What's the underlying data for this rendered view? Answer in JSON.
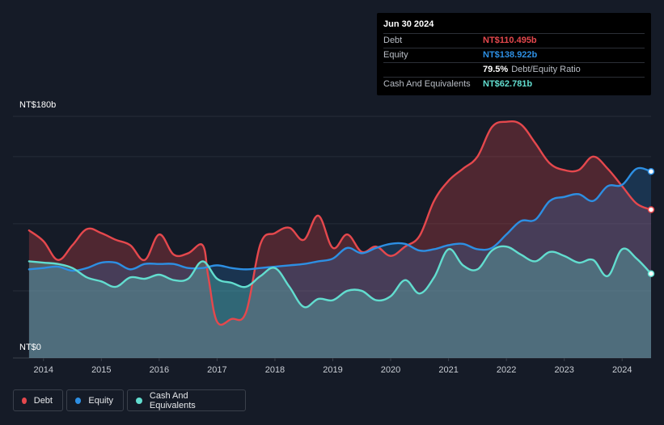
{
  "tooltip": {
    "date": "Jun 30 2024",
    "debt_label": "Debt",
    "debt_value": "NT$110.495b",
    "equity_label": "Equity",
    "equity_value": "NT$138.922b",
    "ratio_value": "79.5%",
    "ratio_label": "Debt/Equity Ratio",
    "cash_label": "Cash And Equivalents",
    "cash_value": "NT$62.781b"
  },
  "legend": {
    "debt": "Debt",
    "equity": "Equity",
    "cash": "Cash And Equivalents"
  },
  "colors": {
    "debt": "#e5484d",
    "equity": "#2d8fe3",
    "cash": "#62ddcf",
    "background": "#151b27"
  },
  "chart_data": {
    "type": "area",
    "y_top_label": "NT$180b",
    "y_bottom_label": "NT$0",
    "ylim": [
      0,
      180
    ],
    "xlim": [
      2013.5,
      2024.5
    ],
    "grid": true,
    "x_ticks": [
      "2014",
      "2015",
      "2016",
      "2017",
      "2018",
      "2019",
      "2020",
      "2021",
      "2022",
      "2023",
      "2024"
    ],
    "series": [
      {
        "name": "Debt",
        "points": [
          [
            2013.75,
            95
          ],
          [
            2014.0,
            87
          ],
          [
            2014.25,
            73
          ],
          [
            2014.5,
            84
          ],
          [
            2014.75,
            96
          ],
          [
            2015.0,
            93
          ],
          [
            2015.25,
            88
          ],
          [
            2015.5,
            84
          ],
          [
            2015.75,
            73
          ],
          [
            2016.0,
            92
          ],
          [
            2016.25,
            77
          ],
          [
            2016.5,
            78
          ],
          [
            2016.75,
            84
          ],
          [
            2016.85,
            60
          ],
          [
            2017.0,
            27
          ],
          [
            2017.25,
            29
          ],
          [
            2017.5,
            34
          ],
          [
            2017.75,
            85
          ],
          [
            2018.0,
            93
          ],
          [
            2018.25,
            97
          ],
          [
            2018.5,
            88
          ],
          [
            2018.75,
            106
          ],
          [
            2019.0,
            82
          ],
          [
            2019.25,
            92
          ],
          [
            2019.5,
            79
          ],
          [
            2019.75,
            83
          ],
          [
            2020.0,
            76
          ],
          [
            2020.25,
            83
          ],
          [
            2020.5,
            91
          ],
          [
            2020.75,
            117
          ],
          [
            2021.0,
            132
          ],
          [
            2021.25,
            141
          ],
          [
            2021.5,
            150
          ],
          [
            2021.75,
            172
          ],
          [
            2022.0,
            176
          ],
          [
            2022.25,
            174
          ],
          [
            2022.5,
            160
          ],
          [
            2022.75,
            145
          ],
          [
            2023.0,
            140
          ],
          [
            2023.25,
            140
          ],
          [
            2023.5,
            150
          ],
          [
            2023.75,
            141
          ],
          [
            2024.0,
            128
          ],
          [
            2024.25,
            115
          ],
          [
            2024.5,
            110.495
          ]
        ]
      },
      {
        "name": "Equity",
        "points": [
          [
            2013.75,
            66
          ],
          [
            2014.0,
            67
          ],
          [
            2014.25,
            68
          ],
          [
            2014.5,
            65
          ],
          [
            2014.75,
            67
          ],
          [
            2015.0,
            71
          ],
          [
            2015.25,
            71
          ],
          [
            2015.5,
            66
          ],
          [
            2015.75,
            70
          ],
          [
            2016.0,
            70
          ],
          [
            2016.25,
            70
          ],
          [
            2016.5,
            67
          ],
          [
            2016.75,
            67
          ],
          [
            2017.0,
            69
          ],
          [
            2017.25,
            67
          ],
          [
            2017.5,
            66
          ],
          [
            2017.75,
            67
          ],
          [
            2018.0,
            68
          ],
          [
            2018.25,
            69
          ],
          [
            2018.5,
            70
          ],
          [
            2018.75,
            72
          ],
          [
            2019.0,
            74
          ],
          [
            2019.25,
            82
          ],
          [
            2019.5,
            78
          ],
          [
            2019.75,
            82
          ],
          [
            2020.0,
            85
          ],
          [
            2020.25,
            85
          ],
          [
            2020.5,
            80
          ],
          [
            2020.75,
            81
          ],
          [
            2021.0,
            84
          ],
          [
            2021.25,
            85
          ],
          [
            2021.5,
            81
          ],
          [
            2021.75,
            82
          ],
          [
            2022.0,
            92
          ],
          [
            2022.25,
            102
          ],
          [
            2022.5,
            103
          ],
          [
            2022.75,
            117
          ],
          [
            2023.0,
            120
          ],
          [
            2023.25,
            122
          ],
          [
            2023.5,
            117
          ],
          [
            2023.75,
            128
          ],
          [
            2024.0,
            129
          ],
          [
            2024.25,
            141
          ],
          [
            2024.5,
            138.922
          ]
        ]
      },
      {
        "name": "Cash And Equivalents",
        "points": [
          [
            2013.75,
            72
          ],
          [
            2014.0,
            71
          ],
          [
            2014.25,
            70
          ],
          [
            2014.5,
            67
          ],
          [
            2014.75,
            60
          ],
          [
            2015.0,
            57
          ],
          [
            2015.25,
            53
          ],
          [
            2015.5,
            60
          ],
          [
            2015.75,
            59
          ],
          [
            2016.0,
            62
          ],
          [
            2016.25,
            58
          ],
          [
            2016.5,
            59
          ],
          [
            2016.75,
            72
          ],
          [
            2017.0,
            59
          ],
          [
            2017.25,
            56
          ],
          [
            2017.5,
            53
          ],
          [
            2017.75,
            61
          ],
          [
            2018.0,
            67
          ],
          [
            2018.25,
            53
          ],
          [
            2018.5,
            38
          ],
          [
            2018.75,
            44
          ],
          [
            2019.0,
            43
          ],
          [
            2019.25,
            50
          ],
          [
            2019.5,
            50
          ],
          [
            2019.75,
            43
          ],
          [
            2020.0,
            46
          ],
          [
            2020.25,
            58
          ],
          [
            2020.5,
            48
          ],
          [
            2020.75,
            60
          ],
          [
            2021.0,
            81
          ],
          [
            2021.25,
            69
          ],
          [
            2021.5,
            66
          ],
          [
            2021.75,
            80
          ],
          [
            2022.0,
            83
          ],
          [
            2022.25,
            77
          ],
          [
            2022.5,
            72
          ],
          [
            2022.75,
            79
          ],
          [
            2023.0,
            76
          ],
          [
            2023.25,
            71
          ],
          [
            2023.5,
            73
          ],
          [
            2023.75,
            61
          ],
          [
            2024.0,
            81
          ],
          [
            2024.25,
            74
          ],
          [
            2024.5,
            62.781
          ]
        ]
      }
    ]
  }
}
